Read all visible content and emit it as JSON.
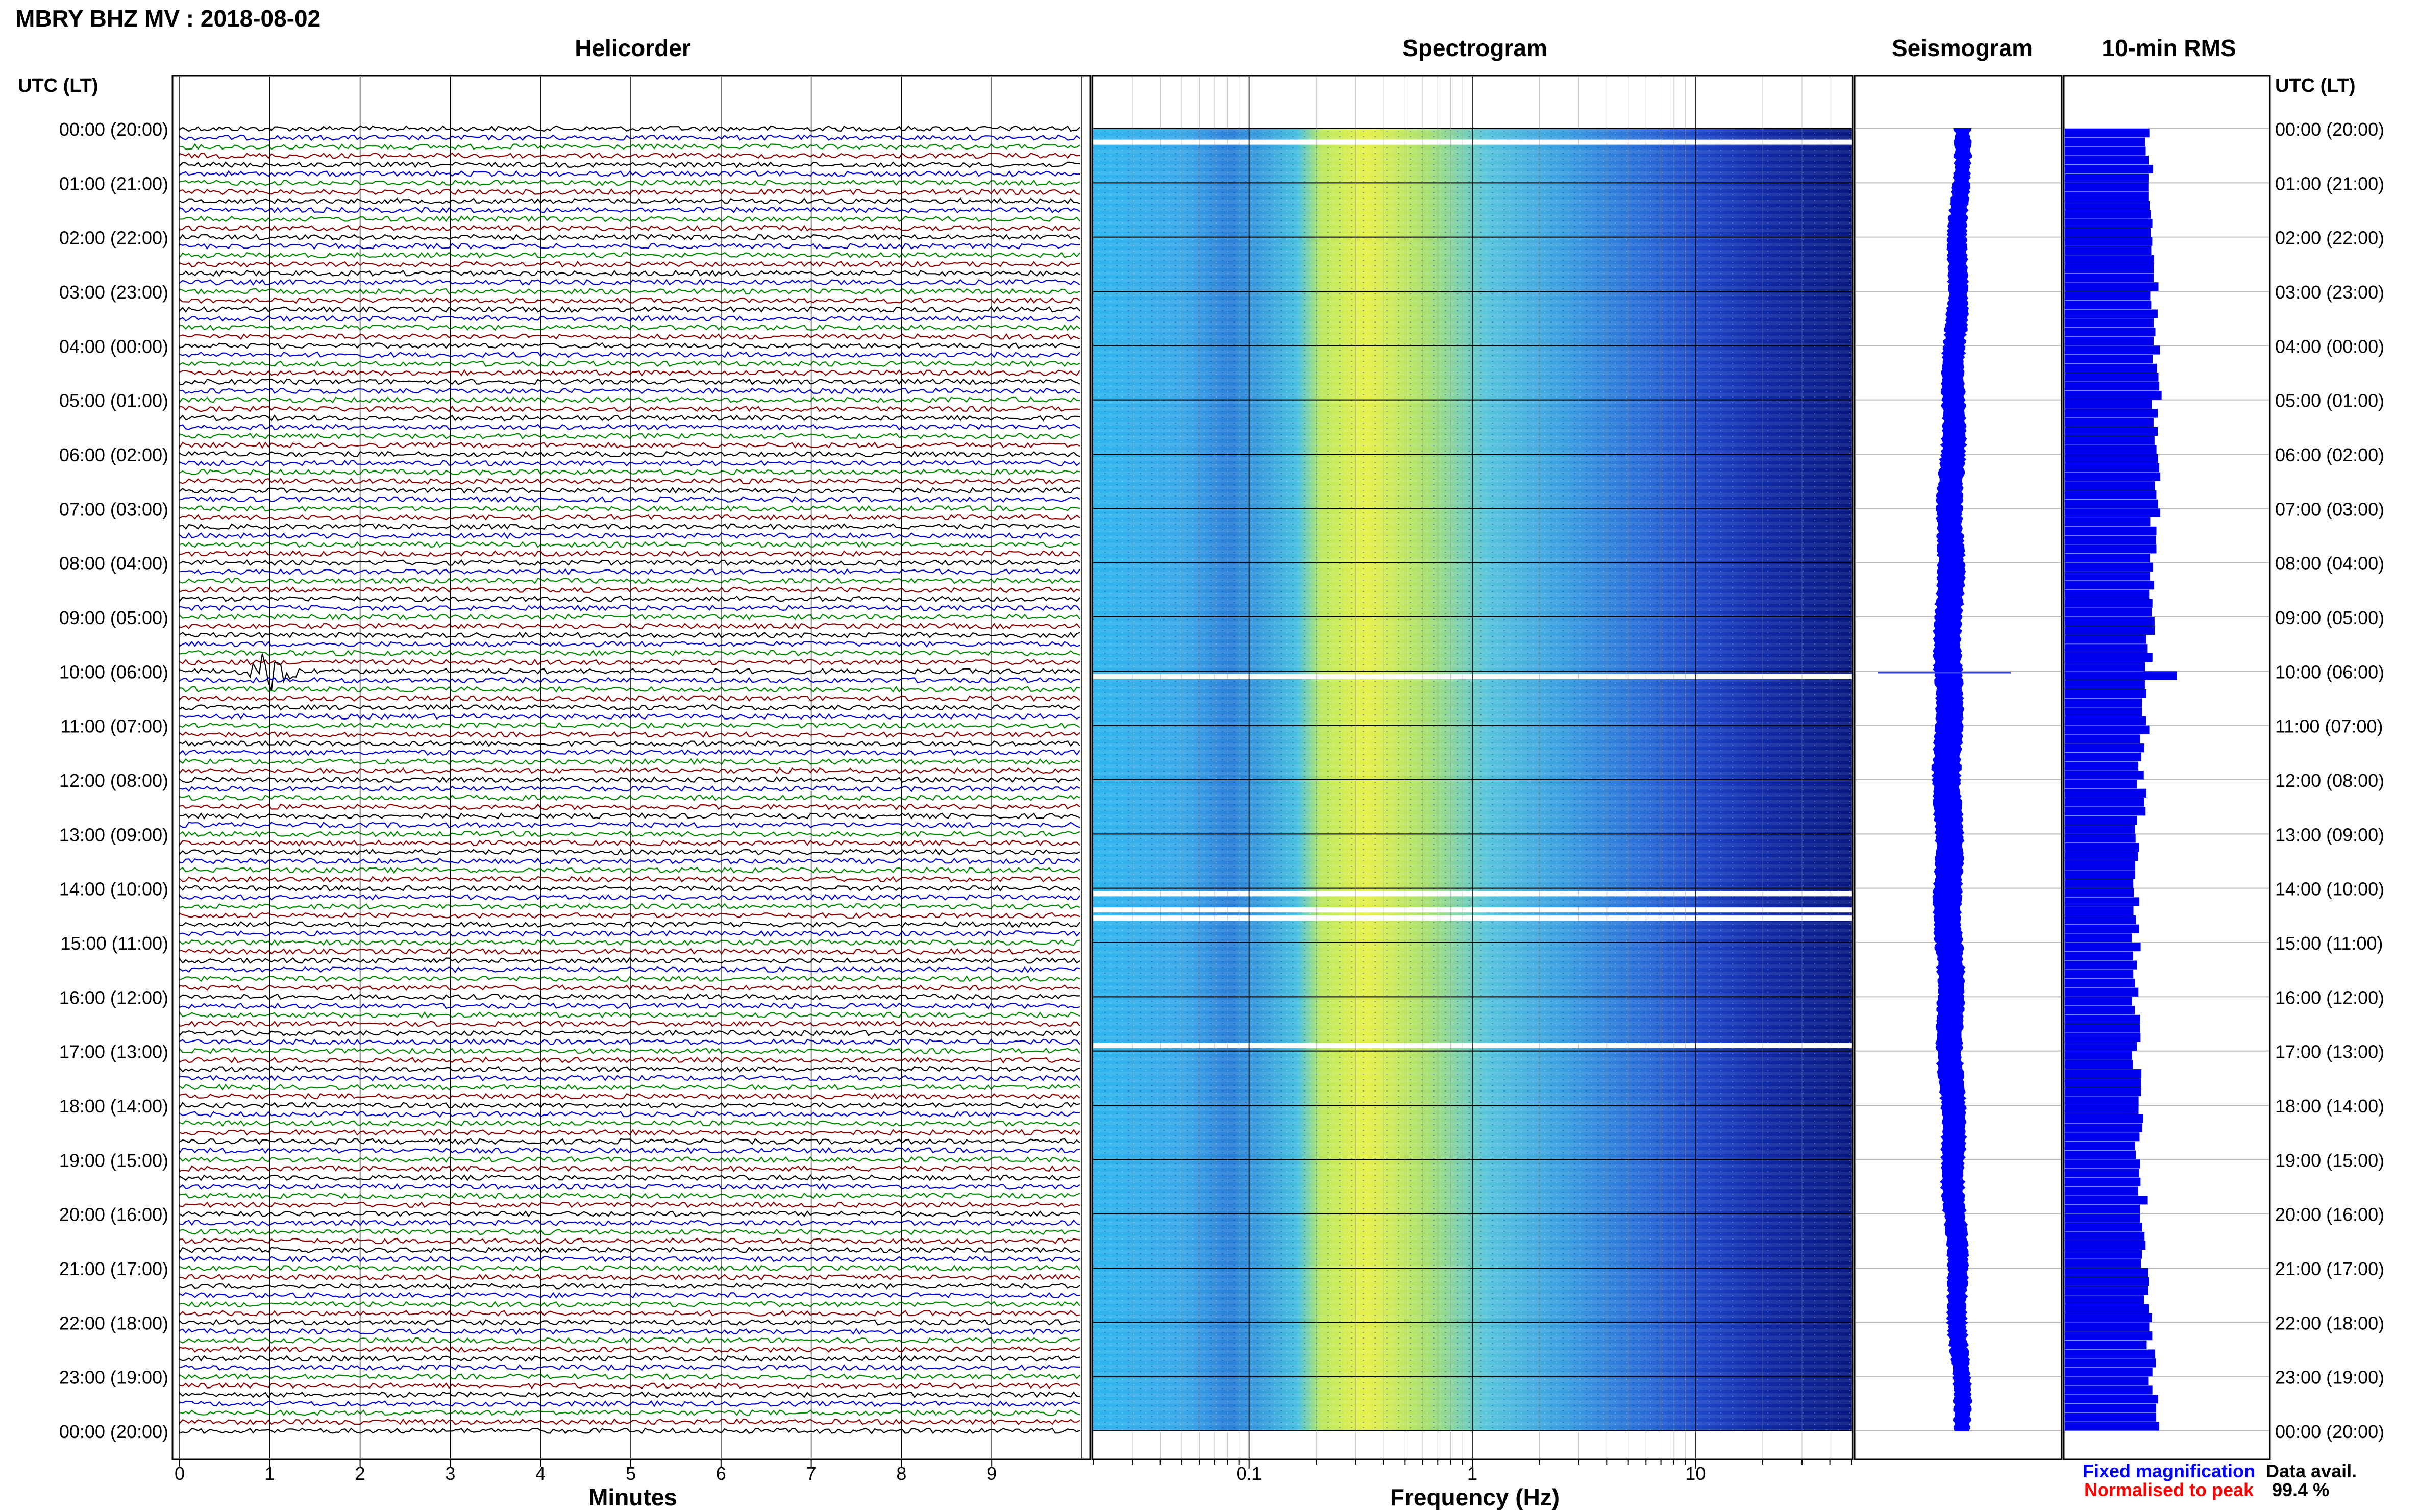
{
  "header": {
    "station_title": "MBRY BHZ MV : 2018-08-02",
    "panel_helicorder": "Helicorder",
    "panel_spectrogram": "Spectrogram",
    "panel_seismogram": "Seismogram",
    "panel_rms": "10-min RMS",
    "utc_lt_left": "UTC (LT)",
    "utc_lt_right": "UTC (LT)"
  },
  "footer": {
    "xlabel_helicorder": "Minutes",
    "xlabel_spectrogram": "Frequency (Hz)",
    "legend_fixed": "Fixed magnification",
    "legend_normalised": "Normalised to peak",
    "data_avail_label": "Data avail.",
    "data_avail_value": "99.4 %"
  },
  "colors": {
    "trace_cycle": [
      "#000000",
      "#0000cc",
      "#008800",
      "#880000"
    ],
    "fixed_magnification": "#0000ff",
    "normalised_to_peak": "#ff0000",
    "seismogram": "#0000ff",
    "rms_bars": "#0000ee"
  },
  "chart_data": [
    {
      "type": "line",
      "title": "Helicorder",
      "xlabel": "Minutes",
      "xlim": [
        0,
        10
      ],
      "x_ticks": [
        "0",
        "1",
        "2",
        "3",
        "4",
        "5",
        "6",
        "7",
        "8",
        "9"
      ],
      "rows_per_hour": 6,
      "total_hours": 24,
      "y_tick_labels": [
        "00:00 (20:00)",
        "01:00 (21:00)",
        "02:00 (22:00)",
        "03:00 (23:00)",
        "04:00 (00:00)",
        "05:00 (01:00)",
        "06:00 (02:00)",
        "07:00 (03:00)",
        "08:00 (04:00)",
        "09:00 (05:00)",
        "10:00 (06:00)",
        "11:00 (07:00)",
        "12:00 (08:00)",
        "13:00 (09:00)",
        "14:00 (10:00)",
        "15:00 (11:00)",
        "16:00 (12:00)",
        "17:00 (13:00)",
        "18:00 (14:00)",
        "19:00 (15:00)",
        "20:00 (16:00)",
        "21:00 (17:00)",
        "22:00 (18:00)",
        "23:00 (19:00)",
        "00:00 (20:00)"
      ],
      "events": [
        {
          "utc_hour": 10.0,
          "minute": 1.0,
          "note": "large transient"
        }
      ],
      "grid": true
    },
    {
      "type": "heatmap",
      "title": "Spectrogram",
      "xlabel": "Frequency (Hz)",
      "x_scale": "log",
      "xlim": [
        0.02,
        50
      ],
      "x_ticks": [
        "0.1",
        "1",
        "10"
      ],
      "data_gaps_utc_hours": [
        0.25,
        10.1,
        14.1,
        14.4,
        14.55,
        16.9
      ]
    },
    {
      "type": "line",
      "title": "Seismogram",
      "event_utc_hour": 10.0
    },
    {
      "type": "bar",
      "title": "10-min RMS",
      "peak_utc_hour": 10.0
    }
  ]
}
